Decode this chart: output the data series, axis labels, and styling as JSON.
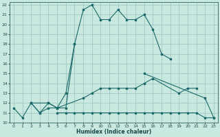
{
  "xlabel": "Humidex (Indice chaleur)",
  "background_color": "#c8e8e0",
  "grid_color": "#a0c8c0",
  "line_color": "#1a6868",
  "xlim": [
    -0.5,
    23.5
  ],
  "ylim": [
    10,
    22.3
  ],
  "xticks": [
    0,
    1,
    2,
    3,
    4,
    5,
    6,
    7,
    8,
    9,
    10,
    11,
    12,
    13,
    14,
    15,
    16,
    17,
    18,
    19,
    20,
    21,
    22,
    23
  ],
  "yticks": [
    10,
    11,
    12,
    13,
    14,
    15,
    16,
    17,
    18,
    19,
    20,
    21,
    22
  ],
  "series": [
    {
      "x": [
        0,
        1,
        2,
        3,
        4,
        5,
        6,
        7,
        8,
        9,
        10,
        11,
        12,
        13,
        14,
        15,
        16,
        17,
        18
      ],
      "y": [
        11.5,
        10.5,
        12.0,
        11.0,
        11.5,
        11.5,
        13.0,
        18.0,
        21.5,
        22.0,
        20.5,
        20.5,
        21.5,
        20.5,
        20.5,
        21.0,
        19.5,
        17.0,
        16.5
      ]
    },
    {
      "x": [
        2,
        3,
        4,
        5,
        6,
        7
      ],
      "y": [
        12.0,
        11.0,
        12.0,
        11.5,
        11.5,
        18.0
      ]
    },
    {
      "x": [
        15,
        22,
        23
      ],
      "y": [
        15.0,
        12.5,
        10.5
      ]
    },
    {
      "x": [
        2,
        4,
        5,
        8,
        9,
        10,
        11,
        12,
        13,
        14,
        15,
        16,
        19,
        20,
        21
      ],
      "y": [
        12.0,
        12.0,
        11.5,
        12.5,
        13.0,
        13.5,
        13.5,
        13.5,
        13.5,
        13.5,
        14.0,
        14.5,
        13.0,
        13.5,
        13.5
      ]
    },
    {
      "x": [
        5,
        6,
        7,
        8,
        9,
        10,
        11,
        12,
        13,
        14,
        15,
        16,
        17,
        18,
        19,
        20,
        21,
        22,
        23
      ],
      "y": [
        11.0,
        11.0,
        11.0,
        11.0,
        11.0,
        11.0,
        11.0,
        11.0,
        11.0,
        11.0,
        11.0,
        11.0,
        11.0,
        11.0,
        11.0,
        11.0,
        11.0,
        10.5,
        10.5
      ]
    }
  ]
}
